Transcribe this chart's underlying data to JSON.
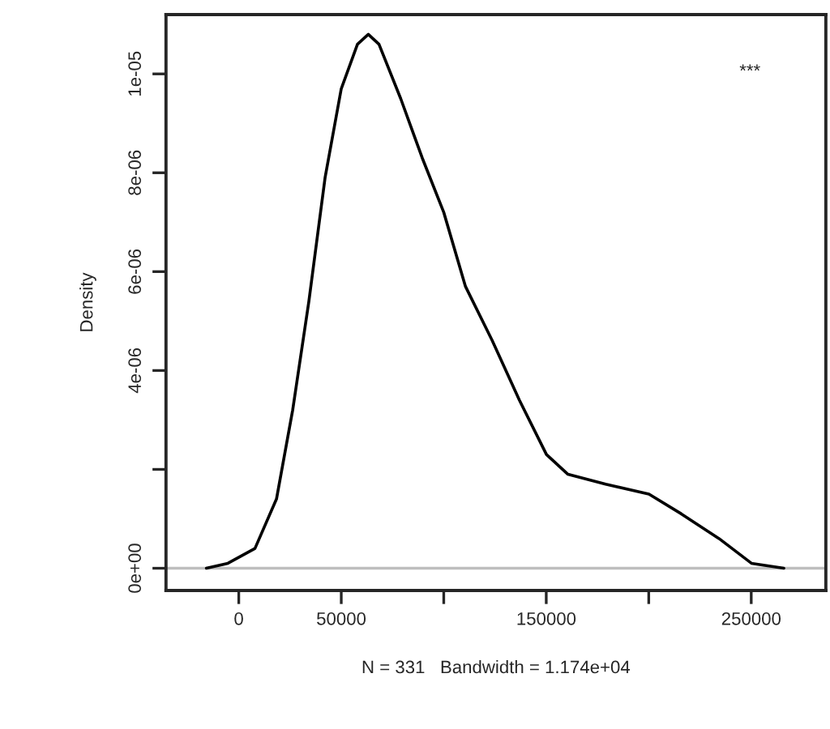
{
  "chart_data": {
    "type": "line",
    "xlabel": "N = 331   Bandwidth = 1.174e+04",
    "ylabel": "Density",
    "x": [
      -15800,
      -5300,
      7900,
      18400,
      26300,
      34200,
      42100,
      50000,
      57900,
      63200,
      68400,
      79000,
      89500,
      100000,
      110600,
      123700,
      136900,
      150100,
      160600,
      179000,
      200100,
      215900,
      234300,
      250100,
      265900
    ],
    "series": [
      {
        "color": "#000000",
        "values": [
          0,
          1e-07,
          4e-07,
          1.4e-06,
          3.2e-06,
          5.4e-06,
          7.9e-06,
          9.7e-06,
          1.06e-05,
          1.08e-05,
          1.06e-05,
          9.5e-06,
          8.3e-06,
          7.2e-06,
          5.7e-06,
          4.6e-06,
          3.4e-06,
          2.3e-06,
          1.9e-06,
          1.7e-06,
          1.5e-06,
          1.1e-06,
          6e-07,
          1e-07,
          0
        ]
      }
    ],
    "xlim": [
      -35500,
      286400
    ],
    "ylim": [
      -4.5e-07,
      1.12e-05
    ],
    "xticks": [
      0,
      50000,
      {
        "value": 100000,
        "label": null
      },
      150000,
      {
        "value": 200000,
        "label": null
      },
      250000
    ],
    "yticks": [
      "0e+00",
      {
        "value": 2e-06,
        "label": null
      },
      {
        "value": 4e-06,
        "label": "4e-06"
      },
      {
        "value": 6e-06,
        "label": "6e-06"
      },
      {
        "value": 8e-06,
        "label": "8e-06"
      },
      {
        "value": 1e-05,
        "label": "1e-05"
      }
    ],
    "ref_lines": [
      {
        "axis": "y",
        "value": 0,
        "color": "#bebebe"
      }
    ],
    "annotations": [
      "***"
    ],
    "grid": false,
    "line_style": "solid",
    "marker": "none"
  }
}
